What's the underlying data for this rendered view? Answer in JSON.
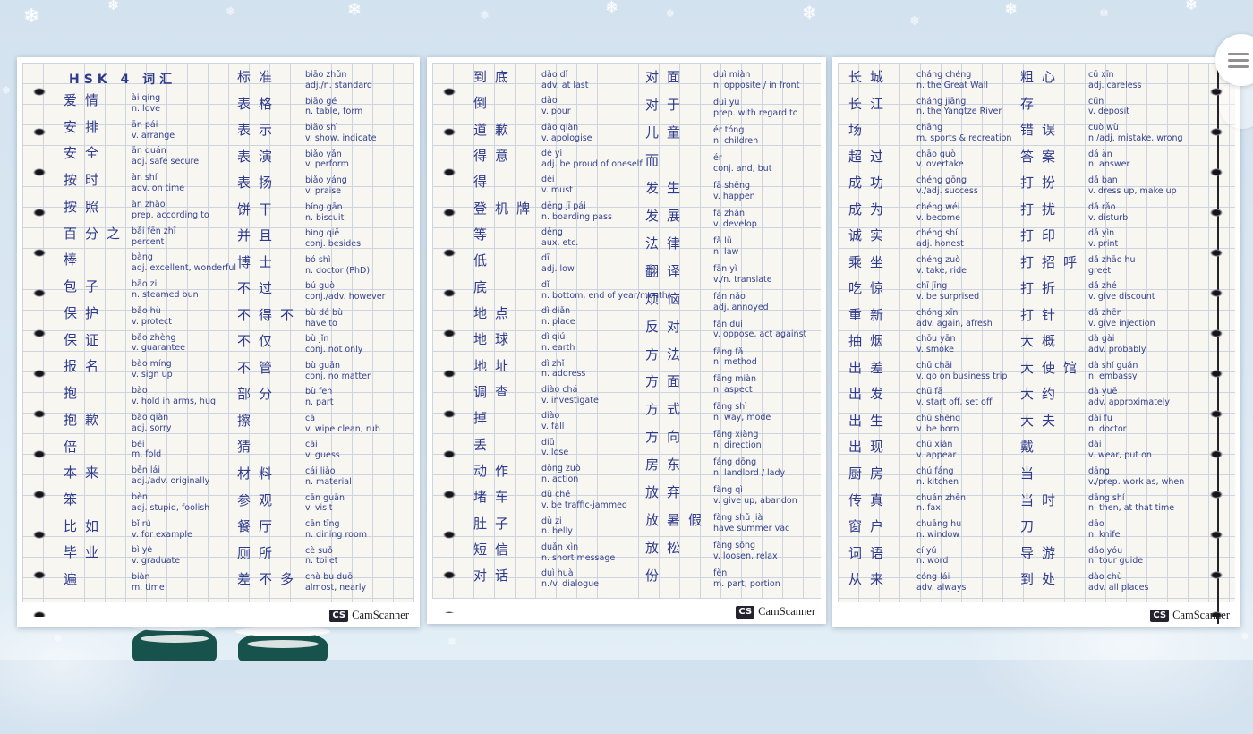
{
  "decor": {
    "snowflake_glyph": "❄"
  },
  "colors": {
    "ink": "#33418e",
    "paper": "#f8f6f1",
    "background": "#dbe8f3",
    "camscanner_badge": "#262331"
  },
  "menu": {
    "icon": "hamburger-icon"
  },
  "watermark": {
    "badge": "CS",
    "name": "CamScanner"
  },
  "pages": [
    {
      "title": "HSK 4 词汇",
      "columns": [
        {
          "entries": [
            {
              "hanzi": "爱情",
              "pinyin": "ài qíng",
              "meaning": "n. love"
            },
            {
              "hanzi": "安排",
              "pinyin": "ān pái",
              "meaning": "v. arrange"
            },
            {
              "hanzi": "安全",
              "pinyin": "ān quán",
              "meaning": "adj. safe secure"
            },
            {
              "hanzi": "按时",
              "pinyin": "àn shí",
              "meaning": "adv. on time"
            },
            {
              "hanzi": "按照",
              "pinyin": "àn zhào",
              "meaning": "prep. according to"
            },
            {
              "hanzi": "百分之",
              "pinyin": "bǎi fēn zhī",
              "meaning": "percent"
            },
            {
              "hanzi": "棒",
              "pinyin": "bàng",
              "meaning": "adj. excellent, wonderful"
            },
            {
              "hanzi": "包子",
              "pinyin": "bāo zi",
              "meaning": "n. steamed bun"
            },
            {
              "hanzi": "保护",
              "pinyin": "bǎo hù",
              "meaning": "v. protect"
            },
            {
              "hanzi": "保证",
              "pinyin": "bǎo zhèng",
              "meaning": "v. guarantee"
            },
            {
              "hanzi": "报名",
              "pinyin": "bào míng",
              "meaning": "v. sign up"
            },
            {
              "hanzi": "抱",
              "pinyin": "bào",
              "meaning": "v. hold in arms, hug"
            },
            {
              "hanzi": "抱歉",
              "pinyin": "bào qiàn",
              "meaning": "adj. sorry"
            },
            {
              "hanzi": "倍",
              "pinyin": "bèi",
              "meaning": "m. fold"
            },
            {
              "hanzi": "本来",
              "pinyin": "běn lái",
              "meaning": "adj./adv. originally"
            },
            {
              "hanzi": "笨",
              "pinyin": "bèn",
              "meaning": "adj. stupid, foolish"
            },
            {
              "hanzi": "比如",
              "pinyin": "bǐ rú",
              "meaning": "v. for example"
            },
            {
              "hanzi": "毕业",
              "pinyin": "bì yè",
              "meaning": "v. graduate"
            },
            {
              "hanzi": "遍",
              "pinyin": "biàn",
              "meaning": "m. time"
            }
          ]
        },
        {
          "entries": [
            {
              "hanzi": "标准",
              "pinyin": "biāo zhǔn",
              "meaning": "adj./n. standard"
            },
            {
              "hanzi": "表格",
              "pinyin": "biǎo gé",
              "meaning": "n. table, form"
            },
            {
              "hanzi": "表示",
              "pinyin": "biǎo shì",
              "meaning": "v. show, indicate"
            },
            {
              "hanzi": "表演",
              "pinyin": "biǎo yǎn",
              "meaning": "v. perform"
            },
            {
              "hanzi": "表扬",
              "pinyin": "biǎo yáng",
              "meaning": "v. praise"
            },
            {
              "hanzi": "饼干",
              "pinyin": "bǐng gān",
              "meaning": "n. biscuit"
            },
            {
              "hanzi": "并且",
              "pinyin": "bìng qiě",
              "meaning": "conj. besides"
            },
            {
              "hanzi": "博士",
              "pinyin": "bó shì",
              "meaning": "n. doctor (PhD)"
            },
            {
              "hanzi": "不过",
              "pinyin": "bú guò",
              "meaning": "conj./adv. however"
            },
            {
              "hanzi": "不得不",
              "pinyin": "bù dé bù",
              "meaning": "have to"
            },
            {
              "hanzi": "不仅",
              "pinyin": "bù jǐn",
              "meaning": "conj. not only"
            },
            {
              "hanzi": "不管",
              "pinyin": "bù guǎn",
              "meaning": "conj. no matter"
            },
            {
              "hanzi": "部分",
              "pinyin": "bù fen",
              "meaning": "n. part"
            },
            {
              "hanzi": "擦",
              "pinyin": "cā",
              "meaning": "v. wipe clean, rub"
            },
            {
              "hanzi": "猜",
              "pinyin": "cāi",
              "meaning": "v. guess"
            },
            {
              "hanzi": "材料",
              "pinyin": "cái liào",
              "meaning": "n. material"
            },
            {
              "hanzi": "参观",
              "pinyin": "cān guān",
              "meaning": "v. visit"
            },
            {
              "hanzi": "餐厅",
              "pinyin": "cān tīng",
              "meaning": "n. dining room"
            },
            {
              "hanzi": "厕所",
              "pinyin": "cè suǒ",
              "meaning": "n. toilet"
            },
            {
              "hanzi": "差不多",
              "pinyin": "chà bu duō",
              "meaning": "almost, nearly"
            }
          ]
        }
      ]
    },
    {
      "columns": [
        {
          "entries": [
            {
              "hanzi": "到底",
              "pinyin": "dào dǐ",
              "meaning": "adv. at last"
            },
            {
              "hanzi": "倒",
              "pinyin": "dào",
              "meaning": "v. pour"
            },
            {
              "hanzi": "道歉",
              "pinyin": "dào qiàn",
              "meaning": "v. apologise"
            },
            {
              "hanzi": "得意",
              "pinyin": "dé yì",
              "meaning": "adj. be proud of oneself"
            },
            {
              "hanzi": "得",
              "pinyin": "děi",
              "meaning": "v. must"
            },
            {
              "hanzi": "登机牌",
              "pinyin": "dēng jī pái",
              "meaning": "n. boarding pass"
            },
            {
              "hanzi": "等",
              "pinyin": "děng",
              "meaning": "aux. etc."
            },
            {
              "hanzi": "低",
              "pinyin": "dī",
              "meaning": "adj. low"
            },
            {
              "hanzi": "底",
              "pinyin": "dǐ",
              "meaning": "n. bottom, end of year/month"
            },
            {
              "hanzi": "地点",
              "pinyin": "dì diǎn",
              "meaning": "n. place"
            },
            {
              "hanzi": "地球",
              "pinyin": "dì qiú",
              "meaning": "n. earth"
            },
            {
              "hanzi": "地址",
              "pinyin": "dì zhǐ",
              "meaning": "n. address"
            },
            {
              "hanzi": "调查",
              "pinyin": "diào chá",
              "meaning": "v. investigate"
            },
            {
              "hanzi": "掉",
              "pinyin": "diào",
              "meaning": "v. fall"
            },
            {
              "hanzi": "丢",
              "pinyin": "diū",
              "meaning": "v. lose"
            },
            {
              "hanzi": "动作",
              "pinyin": "dòng zuò",
              "meaning": "n. action"
            },
            {
              "hanzi": "堵车",
              "pinyin": "dǔ chē",
              "meaning": "v. be traffic-jammed"
            },
            {
              "hanzi": "肚子",
              "pinyin": "dù zi",
              "meaning": "n. belly"
            },
            {
              "hanzi": "短信",
              "pinyin": "duǎn xìn",
              "meaning": "n. short message"
            },
            {
              "hanzi": "对话",
              "pinyin": "duì huà",
              "meaning": "n./v. dialogue"
            }
          ]
        },
        {
          "entries": [
            {
              "hanzi": "对面",
              "pinyin": "duì miàn",
              "meaning": "n. opposite / in front"
            },
            {
              "hanzi": "对于",
              "pinyin": "duì yú",
              "meaning": "prep. with regard to"
            },
            {
              "hanzi": "儿童",
              "pinyin": "ér tóng",
              "meaning": "n. children"
            },
            {
              "hanzi": "而",
              "pinyin": "ér",
              "meaning": "conj. and, but"
            },
            {
              "hanzi": "发生",
              "pinyin": "fā shēng",
              "meaning": "v. happen"
            },
            {
              "hanzi": "发展",
              "pinyin": "fā zhǎn",
              "meaning": "v. develop"
            },
            {
              "hanzi": "法律",
              "pinyin": "fǎ lǜ",
              "meaning": "n. law"
            },
            {
              "hanzi": "翻译",
              "pinyin": "fān yì",
              "meaning": "v./n. translate"
            },
            {
              "hanzi": "烦恼",
              "pinyin": "fán nǎo",
              "meaning": "adj. annoyed"
            },
            {
              "hanzi": "反对",
              "pinyin": "fǎn duì",
              "meaning": "v. oppose, act against"
            },
            {
              "hanzi": "方法",
              "pinyin": "fāng fǎ",
              "meaning": "n. method"
            },
            {
              "hanzi": "方面",
              "pinyin": "fāng miàn",
              "meaning": "n. aspect"
            },
            {
              "hanzi": "方式",
              "pinyin": "fāng shì",
              "meaning": "n. way, mode"
            },
            {
              "hanzi": "方向",
              "pinyin": "fāng xiàng",
              "meaning": "n. direction"
            },
            {
              "hanzi": "房东",
              "pinyin": "fáng dōng",
              "meaning": "n. landlord / lady"
            },
            {
              "hanzi": "放弃",
              "pinyin": "fàng qì",
              "meaning": "v. give up, abandon"
            },
            {
              "hanzi": "放暑假",
              "pinyin": "fàng shǔ jià",
              "meaning": "have summer vac"
            },
            {
              "hanzi": "放松",
              "pinyin": "fàng sōng",
              "meaning": "v. loosen, relax"
            },
            {
              "hanzi": "份",
              "pinyin": "fèn",
              "meaning": "m. part, portion"
            }
          ]
        }
      ]
    },
    {
      "columns": [
        {
          "entries": [
            {
              "hanzi": "长城",
              "pinyin": "cháng chéng",
              "meaning": "n. the Great Wall"
            },
            {
              "hanzi": "长江",
              "pinyin": "cháng jiāng",
              "meaning": "n. the Yangtze River"
            },
            {
              "hanzi": "场",
              "pinyin": "chǎng",
              "meaning": "m. sports & recreation"
            },
            {
              "hanzi": "超过",
              "pinyin": "chāo guò",
              "meaning": "v. overtake"
            },
            {
              "hanzi": "成功",
              "pinyin": "chéng gōng",
              "meaning": "v./adj. success"
            },
            {
              "hanzi": "成为",
              "pinyin": "chéng wéi",
              "meaning": "v. become"
            },
            {
              "hanzi": "诚实",
              "pinyin": "chéng shí",
              "meaning": "adj. honest"
            },
            {
              "hanzi": "乘坐",
              "pinyin": "chéng zuò",
              "meaning": "v. take, ride"
            },
            {
              "hanzi": "吃惊",
              "pinyin": "chī jīng",
              "meaning": "v. be surprised"
            },
            {
              "hanzi": "重新",
              "pinyin": "chóng xīn",
              "meaning": "adv. again, afresh"
            },
            {
              "hanzi": "抽烟",
              "pinyin": "chōu yān",
              "meaning": "v. smoke"
            },
            {
              "hanzi": "出差",
              "pinyin": "chū chāi",
              "meaning": "v. go on business trip"
            },
            {
              "hanzi": "出发",
              "pinyin": "chū fā",
              "meaning": "v. start off, set off"
            },
            {
              "hanzi": "出生",
              "pinyin": "chū shēng",
              "meaning": "v. be born"
            },
            {
              "hanzi": "出现",
              "pinyin": "chū xiàn",
              "meaning": "v. appear"
            },
            {
              "hanzi": "厨房",
              "pinyin": "chú fáng",
              "meaning": "n. kitchen"
            },
            {
              "hanzi": "传真",
              "pinyin": "chuán zhēn",
              "meaning": "n. fax"
            },
            {
              "hanzi": "窗户",
              "pinyin": "chuāng hu",
              "meaning": "n. window"
            },
            {
              "hanzi": "词语",
              "pinyin": "cí yǔ",
              "meaning": "n. word"
            },
            {
              "hanzi": "从来",
              "pinyin": "cóng lái",
              "meaning": "adv. always"
            }
          ]
        },
        {
          "entries": [
            {
              "hanzi": "粗心",
              "pinyin": "cū xīn",
              "meaning": "adj. careless"
            },
            {
              "hanzi": "存",
              "pinyin": "cún",
              "meaning": "v. deposit"
            },
            {
              "hanzi": "错误",
              "pinyin": "cuò wù",
              "meaning": "n./adj. mistake, wrong"
            },
            {
              "hanzi": "答案",
              "pinyin": "dá àn",
              "meaning": "n. answer"
            },
            {
              "hanzi": "打扮",
              "pinyin": "dǎ ban",
              "meaning": "v. dress up, make up"
            },
            {
              "hanzi": "打扰",
              "pinyin": "dǎ rǎo",
              "meaning": "v. disturb"
            },
            {
              "hanzi": "打印",
              "pinyin": "dǎ yìn",
              "meaning": "v. print"
            },
            {
              "hanzi": "打招呼",
              "pinyin": "dǎ zhāo hu",
              "meaning": "greet"
            },
            {
              "hanzi": "打折",
              "pinyin": "dǎ zhé",
              "meaning": "v. give discount"
            },
            {
              "hanzi": "打针",
              "pinyin": "dǎ zhēn",
              "meaning": "v. give injection"
            },
            {
              "hanzi": "大概",
              "pinyin": "dà gài",
              "meaning": "adv. probably"
            },
            {
              "hanzi": "大使馆",
              "pinyin": "dà shǐ guǎn",
              "meaning": "n. embassy"
            },
            {
              "hanzi": "大约",
              "pinyin": "dà yuē",
              "meaning": "adv. approximately"
            },
            {
              "hanzi": "大夫",
              "pinyin": "dài fu",
              "meaning": "n. doctor"
            },
            {
              "hanzi": "戴",
              "pinyin": "dài",
              "meaning": "v. wear, put on"
            },
            {
              "hanzi": "当",
              "pinyin": "dāng",
              "meaning": "v./prep. work as, when"
            },
            {
              "hanzi": "当时",
              "pinyin": "dāng shí",
              "meaning": "n. then, at that time"
            },
            {
              "hanzi": "刀",
              "pinyin": "dāo",
              "meaning": "n. knife"
            },
            {
              "hanzi": "导游",
              "pinyin": "dǎo yóu",
              "meaning": "n. tour guide"
            },
            {
              "hanzi": "到处",
              "pinyin": "dào chù",
              "meaning": "adv. all places"
            }
          ]
        }
      ]
    }
  ]
}
